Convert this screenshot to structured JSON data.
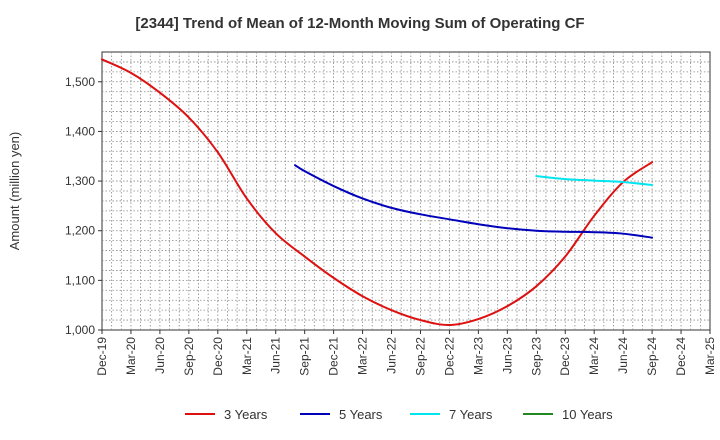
{
  "chart_data": {
    "type": "line",
    "title": "[2344]  Trend of Mean of 12-Month Moving Sum of Operating CF",
    "xlabel": "",
    "ylabel": "Amount (million yen)",
    "ylim": [
      1000,
      1560
    ],
    "yticks": [
      1000,
      1100,
      1200,
      1300,
      1400,
      1500
    ],
    "ytick_labels": [
      "1,000",
      "1,100",
      "1,200",
      "1,300",
      "1,400",
      "1,500"
    ],
    "xlim": [
      0,
      63
    ],
    "x_unit": "months since Dec-19",
    "xtick_labels": [
      "Dec-19",
      "Mar-20",
      "Jun-20",
      "Sep-20",
      "Dec-20",
      "Mar-21",
      "Jun-21",
      "Sep-21",
      "Dec-21",
      "Mar-22",
      "Jun-22",
      "Sep-22",
      "Dec-22",
      "Mar-23",
      "Jun-23",
      "Sep-23",
      "Dec-23",
      "Mar-24",
      "Jun-24",
      "Sep-24",
      "Dec-24",
      "Mar-25"
    ],
    "xtick_positions": [
      0,
      3,
      6,
      9,
      12,
      15,
      18,
      21,
      24,
      27,
      30,
      33,
      36,
      39,
      42,
      45,
      48,
      51,
      54,
      57,
      60,
      63
    ],
    "grid": true,
    "legend_position": "bottom",
    "series": [
      {
        "name": "3 Years",
        "color": "#dd1111",
        "x": [
          0,
          3,
          6,
          9,
          12,
          15,
          18,
          21,
          24,
          27,
          30,
          33,
          36,
          39,
          42,
          45,
          48,
          51,
          54,
          57
        ],
        "values": [
          1545,
          1518,
          1478,
          1428,
          1358,
          1265,
          1195,
          1148,
          1105,
          1068,
          1040,
          1020,
          1010,
          1022,
          1048,
          1088,
          1148,
          1230,
          1298,
          1338
        ]
      },
      {
        "name": "5 Years",
        "color": "#0000bb",
        "x": [
          20,
          21,
          24,
          27,
          30,
          33,
          36,
          39,
          42,
          45,
          48,
          51,
          54,
          57
        ],
        "values": [
          1332,
          1320,
          1290,
          1265,
          1246,
          1233,
          1223,
          1213,
          1205,
          1200,
          1198,
          1197,
          1194,
          1186
        ]
      },
      {
        "name": "7 Years",
        "color": "#00e5ee",
        "x": [
          45,
          48,
          51,
          54,
          57
        ],
        "values": [
          1310,
          1304,
          1301,
          1298,
          1292
        ]
      },
      {
        "name": "10 Years",
        "color": "#228822",
        "x": [],
        "values": []
      }
    ]
  }
}
